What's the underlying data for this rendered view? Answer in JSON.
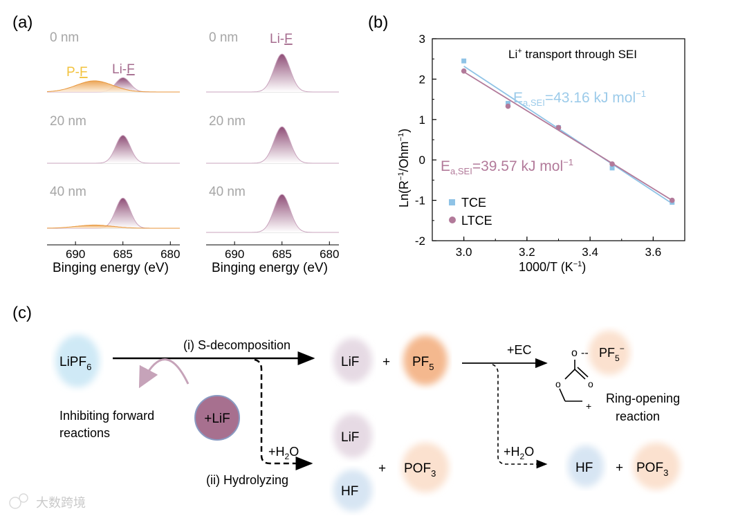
{
  "panel_labels": {
    "a": "(a)",
    "b": "(b)",
    "c": "(c)"
  },
  "xps": {
    "xlabel": "Binging energy (eV)",
    "ticks": [
      "690",
      "685",
      "680"
    ],
    "left_depths": [
      "0 nm",
      "20 nm",
      "40 nm"
    ],
    "right_depths": [
      "0 nm",
      "20 nm",
      "40 nm"
    ],
    "label_pf_prefix": "P-",
    "label_pf_underlined": "F",
    "label_lif_prefix": "Li-",
    "label_lif_underlined": "F",
    "right_label_prefix": "Li-",
    "right_label_underlined": "F",
    "colors": {
      "lif": "#8f4e77",
      "pf": "#e8963a",
      "pf_label": "#f2c23e",
      "depth_text": "#a6a6a6"
    }
  },
  "chart_data": [
    {
      "type": "line",
      "id": "xps-left",
      "title": "",
      "xlabel": "Binging energy (eV)",
      "ylabel": "",
      "xlim": [
        693,
        679
      ],
      "xticks": [
        690,
        685,
        680
      ],
      "traces": [
        {
          "depth": "0 nm",
          "series": [
            {
              "name": "Li-F",
              "center_eV": 685,
              "fwhm_eV": 1.8,
              "rel_intensity": 0.18
            },
            {
              "name": "P-F",
              "center_eV": 688,
              "fwhm_eV": 4.5,
              "rel_intensity": 0.14
            }
          ]
        },
        {
          "depth": "20 nm",
          "series": [
            {
              "name": "Li-F",
              "center_eV": 685,
              "fwhm_eV": 1.8,
              "rel_intensity": 0.35
            }
          ]
        },
        {
          "depth": "40 nm",
          "series": [
            {
              "name": "Li-F",
              "center_eV": 685,
              "fwhm_eV": 1.8,
              "rel_intensity": 0.38
            },
            {
              "name": "P-F",
              "center_eV": 688,
              "fwhm_eV": 4.5,
              "rel_intensity": 0.04
            }
          ]
        }
      ]
    },
    {
      "type": "line",
      "id": "xps-right",
      "title": "",
      "xlabel": "Binging energy (eV)",
      "ylabel": "",
      "xlim": [
        693,
        679
      ],
      "xticks": [
        690,
        685,
        680
      ],
      "traces": [
        {
          "depth": "0 nm",
          "series": [
            {
              "name": "Li-F",
              "center_eV": 685,
              "fwhm_eV": 2.0,
              "rel_intensity": 1.0
            }
          ]
        },
        {
          "depth": "20 nm",
          "series": [
            {
              "name": "Li-F",
              "center_eV": 685,
              "fwhm_eV": 2.0,
              "rel_intensity": 0.96
            }
          ]
        },
        {
          "depth": "40 nm",
          "series": [
            {
              "name": "Li-F",
              "center_eV": 685,
              "fwhm_eV": 2.0,
              "rel_intensity": 1.0
            }
          ]
        }
      ]
    },
    {
      "type": "scatter",
      "id": "arrhenius",
      "title": "Li⁺ transport through SEI",
      "title_main": "Li",
      "title_sup": "+",
      "title_rest": " transport through SEI",
      "xlabel": "1000/T (K⁻¹)",
      "xlabel_main": "1000/T (K",
      "xlabel_sup": "−1",
      "xlabel_end": ")",
      "ylabel": "Ln(R⁻¹/Ohm⁻¹)",
      "ylabel_parts": [
        "Ln(R",
        "−1",
        "/Ohm",
        "−1",
        ")"
      ],
      "xlim": [
        2.9,
        3.7
      ],
      "ylim": [
        -2,
        3
      ],
      "xticks": [
        "3.0",
        "3.2",
        "3.4",
        "3.6"
      ],
      "yticks": [
        "-2",
        "-1",
        "0",
        "1",
        "2",
        "3"
      ],
      "series": [
        {
          "name": "TCE",
          "color": "#8fc3e6",
          "marker": "square",
          "x": [
            3.0,
            3.14,
            3.3,
            3.47,
            3.66
          ],
          "y": [
            2.45,
            1.4,
            0.8,
            -0.2,
            -1.05
          ],
          "fit": {
            "x": [
              3.0,
              3.66
            ],
            "y": [
              2.32,
              -1.08
            ]
          },
          "annotation_main": "E",
          "annotation_sub": "a,SEI",
          "annotation_rest": "=43.16 kJ mol",
          "annotation_sup": "−1"
        },
        {
          "name": "LTCE",
          "color": "#b27a9a",
          "marker": "circle",
          "x": [
            3.0,
            3.14,
            3.3,
            3.47,
            3.66
          ],
          "y": [
            2.2,
            1.33,
            0.8,
            -0.1,
            -1.0
          ],
          "fit": {
            "x": [
              3.0,
              3.66
            ],
            "y": [
              2.18,
              -1.0
            ]
          },
          "annotation_main": "E",
          "annotation_sub": "a,SEI",
          "annotation_rest": "=39.57 kJ mol",
          "annotation_sup": "−1"
        }
      ]
    }
  ],
  "scheme": {
    "lipf6_main": "LiPF",
    "lipf6_sub": "6",
    "step_i": "(i) S-decomposition",
    "step_ii": "(ii) Hydrolyzing",
    "h2o_main": "+H",
    "h2o_sub": "2",
    "h2o_end": "O",
    "plus_ec": "+EC",
    "lif": "LiF",
    "pf5_main": "PF",
    "pf5_sub": "5",
    "pf5_ion_main": "PF",
    "pf5_ion_sub": "5",
    "pf5_ion_sup": "−",
    "pof3_main": "POF",
    "pof3_sub": "3",
    "hf": "HF",
    "plus": "+",
    "plus_lif": "+LiF",
    "inhibit_line1": "Inhibiting  forward",
    "inhibit_line2": "reactions",
    "ring_line1": "Ring-opening",
    "ring_line2": "reaction",
    "o_atom": "o",
    "dash_bond": "--",
    "positive_charge": "+",
    "colors": {
      "lipf6": "#cfe9f6",
      "lif": "#e6dae4",
      "pf5": "#f4b88e",
      "pof3": "#fbe1cf",
      "hf": "#d7e5f3",
      "plus_lif": "#a7708f"
    }
  },
  "watermark": {
    "text": "大数跨境"
  }
}
